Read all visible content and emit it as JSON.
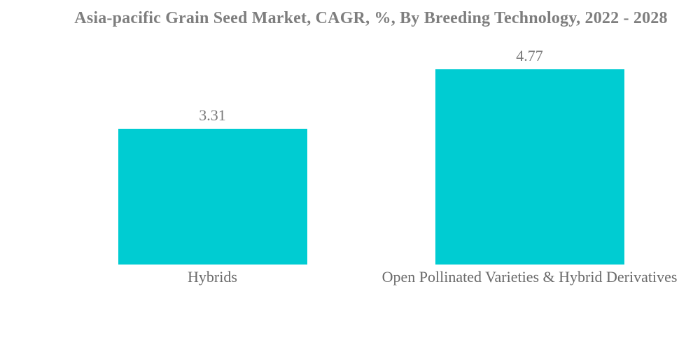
{
  "chart_data": {
    "type": "bar",
    "title": "Asia-pacific Grain Seed Market, CAGR, %, By Breeding Technology, 2022 - 2028",
    "categories": [
      "Hybrids",
      "Open Pollinated Varieties & Hybrid Derivatives"
    ],
    "values": [
      3.31,
      4.77
    ],
    "value_labels": [
      "3.31",
      "4.77"
    ],
    "xlabel": "",
    "ylabel": "",
    "ylim": [
      0,
      5
    ],
    "grid": false,
    "legend": "none",
    "axes_visible": false,
    "bar_color": "#00ccd2",
    "title_color": "#7e7e7e",
    "value_label_color": "#777777",
    "category_label_color": "#6a6a6a",
    "background_color": "#ffffff"
  }
}
